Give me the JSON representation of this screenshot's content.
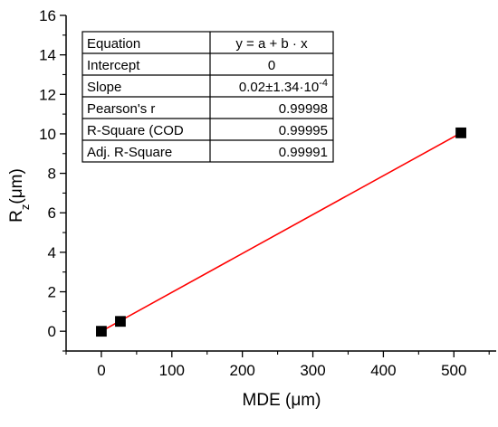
{
  "chart_data": {
    "type": "scatter",
    "xlabel": "MDE (μm)",
    "ylabel_main": "R",
    "ylabel_sub": "z",
    "ylabel_unit": "(μm)",
    "xlim": [
      -50,
      560
    ],
    "ylim": [
      -1,
      16
    ],
    "xticks": [
      0,
      100,
      200,
      300,
      400,
      500
    ],
    "yticks": [
      0,
      2,
      4,
      6,
      8,
      10,
      12,
      14,
      16
    ],
    "points": [
      {
        "x": 0,
        "y": 0.0
      },
      {
        "x": 27,
        "y": 0.5
      },
      {
        "x": 510,
        "y": 10.05
      }
    ],
    "marker_color": "#000000",
    "fit": {
      "intercept": 0,
      "slope": 0.0197,
      "x_range": [
        0,
        510
      ],
      "color": "#ff0000"
    },
    "table": [
      {
        "label": "Equation",
        "value": "y = a + b · x"
      },
      {
        "label": "Intercept",
        "value": "0"
      },
      {
        "label": "Slope",
        "value": "0.02±1.34·10",
        "value_sup": "-4"
      },
      {
        "label": "Pearson's r",
        "value": "0.99998"
      },
      {
        "label": "R-Square (COD",
        "value": "0.99995"
      },
      {
        "label": "Adj. R-Square",
        "value": "0.99991"
      }
    ]
  }
}
